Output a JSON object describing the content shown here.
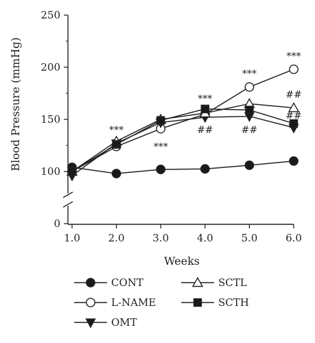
{
  "chart_data": {
    "type": "line",
    "title": "",
    "xlabel": "Weeks",
    "ylabel": "Blood Pressure (mmHg)",
    "x": [
      1.0,
      2.0,
      3.0,
      4.0,
      5.0,
      6.0
    ],
    "x_tick_labels": [
      "1.0",
      "2.0",
      "3.0",
      "4.0",
      "5.0",
      "6.0"
    ],
    "xlim": [
      1.0,
      6.0
    ],
    "y_tick_labels": [
      "0",
      "100",
      "150",
      "200",
      "250"
    ],
    "ylim": [
      85,
      250
    ],
    "y_axis_break": true,
    "grid": false,
    "legend_position": "bottom",
    "series": [
      {
        "name": "CONT",
        "marker": "filled-circle",
        "values": [
          104,
          98,
          102,
          102.5,
          106,
          110
        ]
      },
      {
        "name": "L-NAME",
        "marker": "open-circle",
        "values": [
          100,
          124,
          141,
          155,
          181,
          198
        ]
      },
      {
        "name": "OMT",
        "marker": "filled-triangle-down",
        "values": [
          96,
          127,
          147,
          152,
          153,
          142
        ]
      },
      {
        "name": "SCTL",
        "marker": "open-triangle-up",
        "values": [
          100,
          129,
          150,
          156,
          165,
          161
        ]
      },
      {
        "name": "SCTH",
        "marker": "filled-square",
        "values": [
          100,
          126,
          149,
          160,
          159,
          146
        ]
      }
    ],
    "annotations": [
      {
        "text": "***",
        "x": 2.0,
        "y": 140
      },
      {
        "text": "***",
        "x": 3.0,
        "y": 124
      },
      {
        "text": "***",
        "x": 4.0,
        "y": 170
      },
      {
        "text": "##",
        "x": 4.0,
        "y": 140
      },
      {
        "text": "***",
        "x": 5.0,
        "y": 194
      },
      {
        "text": "##",
        "x": 5.0,
        "y": 140
      },
      {
        "text": "***",
        "x": 6.0,
        "y": 211
      },
      {
        "text": "##",
        "x": 6.0,
        "y": 174
      },
      {
        "text": "##",
        "x": 6.0,
        "y": 154
      }
    ]
  }
}
